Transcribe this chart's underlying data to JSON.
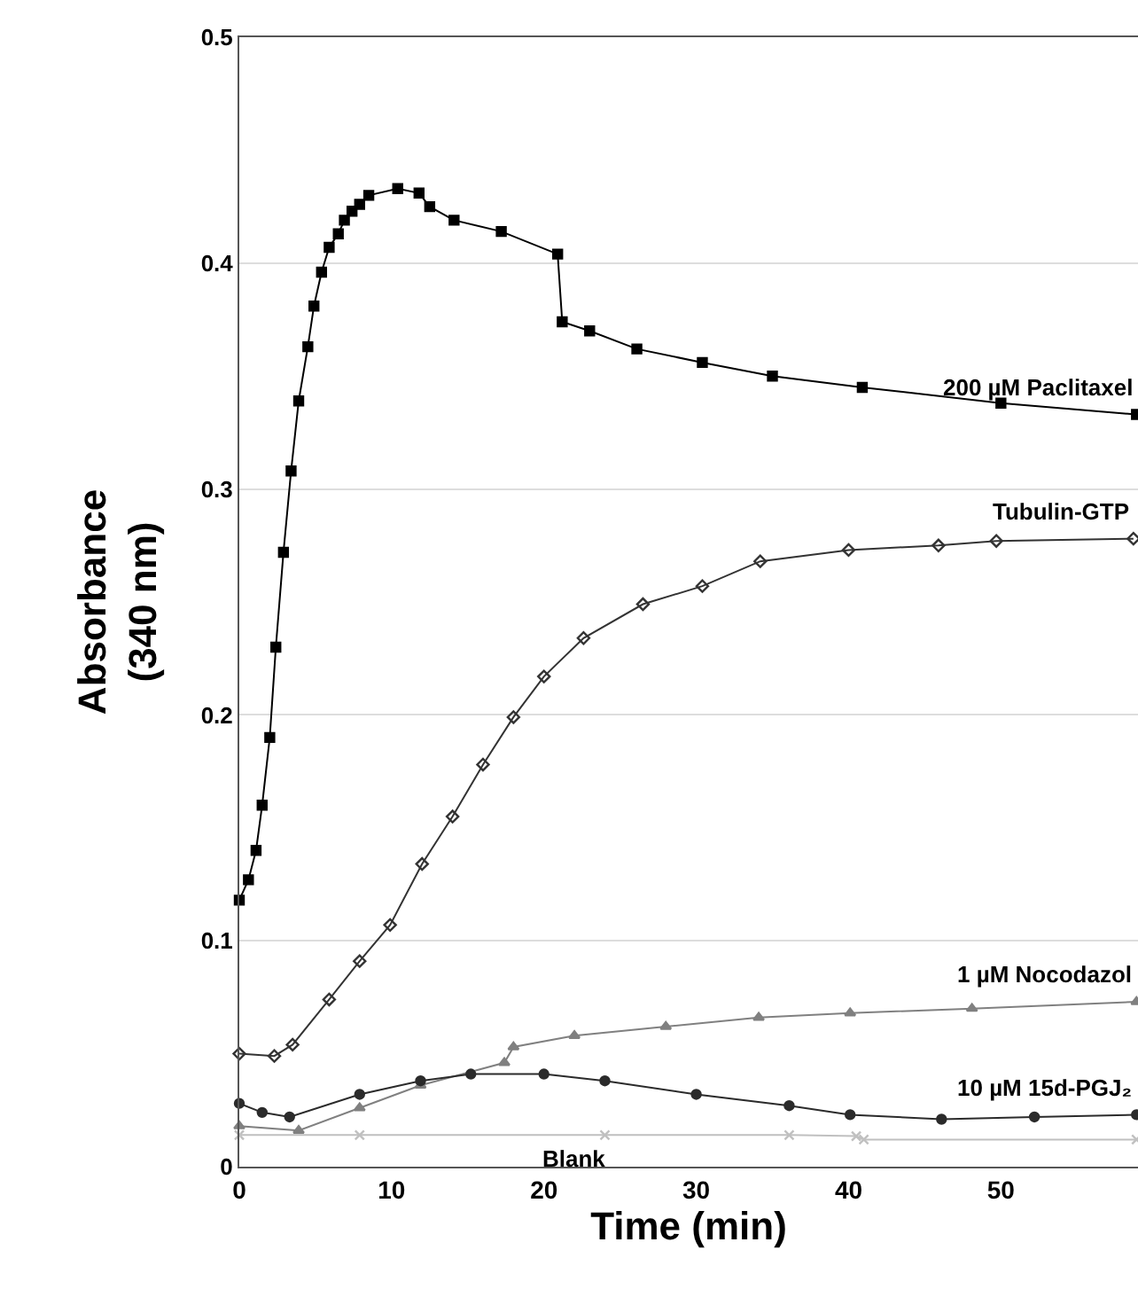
{
  "chart_data": {
    "type": "line",
    "xlabel": "Time (min)",
    "ylabel": "Absorbance\n(340 nm)",
    "xlim": [
      0,
      59
    ],
    "xticks": [
      0,
      10,
      20,
      30,
      40,
      50
    ],
    "ylim": [
      0,
      0.5
    ],
    "yticks": [
      0,
      0.1,
      0.2,
      0.3,
      0.4,
      0.5
    ],
    "grid": "y",
    "legend": false,
    "annotations": [
      {
        "text": "Blank",
        "x": 22,
        "y": 0.012
      }
    ],
    "series": [
      {
        "name": "200 µM Paclitaxel",
        "color": "#000000",
        "marker": "square",
        "x": [
          0,
          0.6,
          1.1,
          1.5,
          2.0,
          2.4,
          2.9,
          3.4,
          3.9,
          4.5,
          4.9,
          5.4,
          5.9,
          6.5,
          6.9,
          7.4,
          7.9,
          8.5,
          10.4,
          11.8,
          12.5,
          14.1,
          17.2,
          20.9,
          21.2,
          23.0,
          26.1,
          30.4,
          35.0,
          40.9,
          50.0,
          58.9
        ],
        "values": [
          0.118,
          0.127,
          0.14,
          0.16,
          0.19,
          0.23,
          0.272,
          0.308,
          0.339,
          0.363,
          0.381,
          0.396,
          0.407,
          0.413,
          0.419,
          0.423,
          0.426,
          0.43,
          0.433,
          0.431,
          0.425,
          0.419,
          0.414,
          0.404,
          0.374,
          0.37,
          0.362,
          0.356,
          0.35,
          0.345,
          0.338,
          0.333
        ]
      },
      {
        "name": "Tubulin-GTP",
        "color": "#333333",
        "marker": "diamond",
        "x": [
          0,
          2.3,
          3.5,
          5.9,
          7.9,
          9.9,
          12.0,
          14.0,
          16.0,
          18.0,
          20.0,
          22.6,
          26.5,
          30.4,
          34.2,
          40.0,
          45.9,
          49.7,
          58.7
        ],
        "values": [
          0.05,
          0.049,
          0.054,
          0.074,
          0.091,
          0.107,
          0.134,
          0.155,
          0.178,
          0.199,
          0.217,
          0.234,
          0.249,
          0.257,
          0.268,
          0.273,
          0.275,
          0.277,
          0.278
        ]
      },
      {
        "name": "1 µM Nocodazol",
        "color": "#808080",
        "marker": "triangle",
        "x": [
          0,
          3.9,
          7.9,
          11.9,
          17.4,
          18.0,
          22.0,
          28.0,
          34.1,
          40.1,
          48.1,
          58.9
        ],
        "values": [
          0.018,
          0.016,
          0.026,
          0.036,
          0.046,
          0.053,
          0.058,
          0.062,
          0.066,
          0.068,
          0.07,
          0.073
        ]
      },
      {
        "name": "10 µM 15d-PGJ₂",
        "color": "#2b2b2b",
        "marker": "circle",
        "x": [
          0,
          1.5,
          3.3,
          7.9,
          11.9,
          15.2,
          20.0,
          24.0,
          30.0,
          36.1,
          40.1,
          46.1,
          52.2,
          58.9
        ],
        "values": [
          0.028,
          0.024,
          0.022,
          0.032,
          0.038,
          0.041,
          0.041,
          0.038,
          0.032,
          0.027,
          0.023,
          0.021,
          0.022,
          0.023
        ]
      },
      {
        "color": "#c0c0c0",
        "marker": "cross",
        "x": [
          0,
          7.9,
          24.0,
          36.1,
          40.5,
          41.0,
          58.9
        ],
        "values": [
          0.014,
          0.014,
          0.014,
          0.014,
          0.0135,
          0.012,
          0.012
        ]
      }
    ]
  }
}
